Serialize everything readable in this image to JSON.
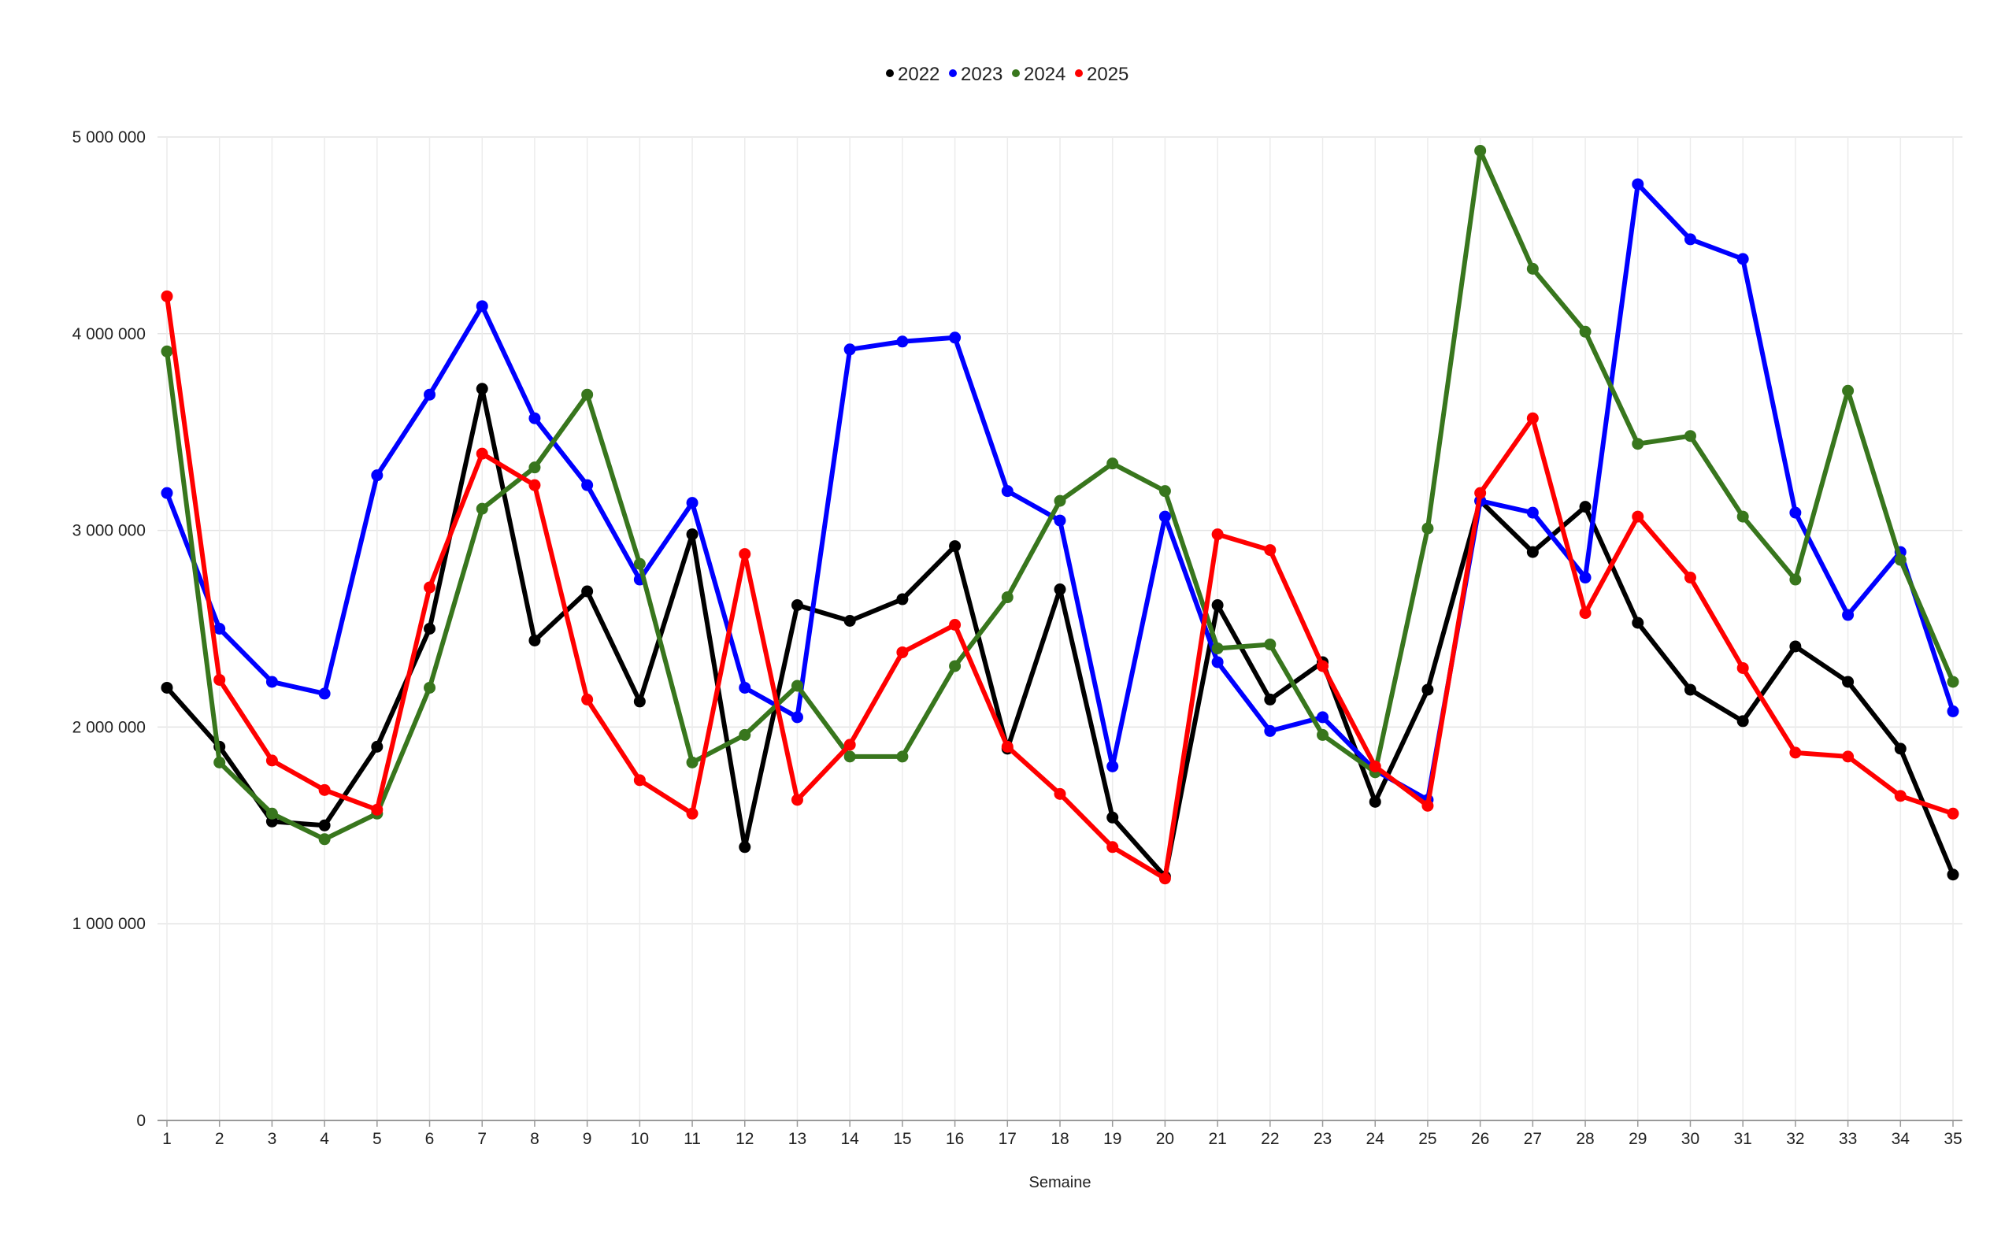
{
  "chart_data": {
    "type": "line",
    "title": "",
    "xlabel": "Semaine",
    "ylabel": "",
    "ylim": [
      0,
      5000000
    ],
    "yticks": [
      0,
      1000000,
      2000000,
      3000000,
      4000000,
      5000000
    ],
    "ytick_labels": [
      "0",
      "1 000 000",
      "2 000 000",
      "3 000 000",
      "4 000 000",
      "5 000 000"
    ],
    "grid": true,
    "legend_position": "top-center",
    "x": [
      1,
      2,
      3,
      4,
      5,
      6,
      7,
      8,
      9,
      10,
      11,
      12,
      13,
      14,
      15,
      16,
      17,
      18,
      19,
      20,
      21,
      22,
      23,
      24,
      25,
      26,
      27,
      28,
      29,
      30,
      31,
      32,
      33,
      34,
      35
    ],
    "series": [
      {
        "name": "2022",
        "color": "#000000",
        "values": [
          2200000,
          1900000,
          1520000,
          1500000,
          1900000,
          2500000,
          3720000,
          2440000,
          2690000,
          2130000,
          2980000,
          1390000,
          2620000,
          2540000,
          2650000,
          2920000,
          1890000,
          2700000,
          1540000,
          1240000,
          2620000,
          2140000,
          2330000,
          1620000,
          2190000,
          3150000,
          2890000,
          3120000,
          2530000,
          2190000,
          2030000,
          2410000,
          2230000,
          1890000,
          1250000
        ]
      },
      {
        "name": "2023",
        "color": "#0000ff",
        "values": [
          3190000,
          2500000,
          2230000,
          2170000,
          3280000,
          3690000,
          4140000,
          3570000,
          3230000,
          2750000,
          3140000,
          2200000,
          2050000,
          3920000,
          3960000,
          3980000,
          3200000,
          3050000,
          1800000,
          3070000,
          2330000,
          1980000,
          2050000,
          1780000,
          1630000,
          3150000,
          3090000,
          2760000,
          4760000,
          4480000,
          4380000,
          3090000,
          2570000,
          2890000,
          2080000
        ]
      },
      {
        "name": "2024",
        "color": "#38761d",
        "values": [
          3910000,
          1820000,
          1560000,
          1430000,
          1560000,
          2200000,
          3110000,
          3320000,
          3690000,
          2830000,
          1820000,
          1960000,
          2210000,
          1850000,
          1850000,
          2310000,
          2660000,
          3150000,
          3340000,
          3200000,
          2400000,
          2420000,
          1960000,
          1770000,
          3010000,
          4930000,
          4330000,
          4010000,
          3440000,
          3480000,
          3070000,
          2750000,
          3710000,
          2850000,
          2230000
        ]
      },
      {
        "name": "2025",
        "color": "#ff0000",
        "values": [
          4190000,
          2240000,
          1830000,
          1680000,
          1580000,
          2710000,
          3390000,
          3230000,
          2140000,
          1730000,
          1560000,
          2880000,
          1630000,
          1910000,
          2380000,
          2520000,
          1900000,
          1660000,
          1390000,
          1230000,
          2980000,
          2900000,
          2310000,
          1800000,
          1600000,
          3190000,
          3570000,
          2580000,
          3070000,
          2760000,
          2300000,
          1870000,
          1850000,
          1650000,
          1560000
        ]
      }
    ]
  }
}
